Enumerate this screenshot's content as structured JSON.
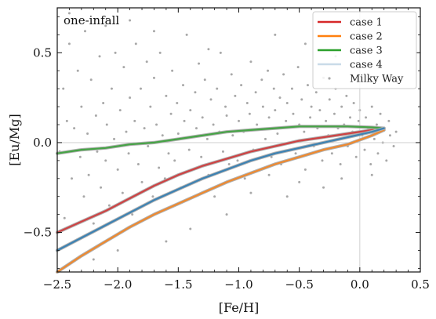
{
  "chart_data": {
    "type": "line",
    "annotation": "one-infall",
    "xlabel": "[Fe/H]",
    "ylabel": "[Eu/Mg]",
    "xlim": [
      -2.5,
      0.5
    ],
    "ylim": [
      -0.72,
      0.75
    ],
    "xticks": [
      "−2.5",
      "−2.0",
      "−1.5",
      "−1.0",
      "−0.5",
      "0.0",
      "0.5"
    ],
    "xtick_values": [
      -2.5,
      -2.0,
      -1.5,
      -1.0,
      -0.5,
      0.0,
      0.5
    ],
    "yticks": [
      "−0.5",
      "0.0",
      "0.5"
    ],
    "ytick_values": [
      -0.5,
      0.0,
      0.5
    ],
    "reference_lines": {
      "x": 0.0,
      "y": 0.0
    },
    "legend_position": "top-right",
    "series": [
      {
        "name": "case 1",
        "color": "#d62728",
        "x": [
          -2.5,
          -2.3,
          -2.1,
          -1.9,
          -1.7,
          -1.5,
          -1.3,
          -1.1,
          -0.9,
          -0.7,
          -0.5,
          -0.3,
          -0.1,
          0.1,
          0.2
        ],
        "y": [
          -0.5,
          -0.44,
          -0.38,
          -0.31,
          -0.24,
          -0.18,
          -0.13,
          -0.09,
          -0.05,
          -0.02,
          0.01,
          0.03,
          0.05,
          0.07,
          0.08
        ]
      },
      {
        "name": "case 2",
        "color": "#ff7f0e",
        "x": [
          -2.5,
          -2.3,
          -2.1,
          -1.9,
          -1.7,
          -1.5,
          -1.3,
          -1.1,
          -0.9,
          -0.7,
          -0.5,
          -0.3,
          -0.1,
          0.1,
          0.2
        ],
        "y": [
          -0.72,
          -0.63,
          -0.55,
          -0.47,
          -0.4,
          -0.34,
          -0.28,
          -0.22,
          -0.17,
          -0.12,
          -0.08,
          -0.04,
          -0.01,
          0.04,
          0.07
        ]
      },
      {
        "name": "case 3",
        "color": "#2ca02c",
        "x": [
          -2.5,
          -2.3,
          -2.1,
          -1.9,
          -1.7,
          -1.5,
          -1.3,
          -1.1,
          -0.9,
          -0.7,
          -0.5,
          -0.3,
          -0.1,
          0.1,
          0.2
        ],
        "y": [
          -0.06,
          -0.04,
          -0.03,
          -0.01,
          0.0,
          0.02,
          0.04,
          0.06,
          0.07,
          0.08,
          0.09,
          0.09,
          0.09,
          0.085,
          0.08
        ]
      },
      {
        "name": "case 4",
        "color": "#1f77b4",
        "legend_color": "#c9dbe8",
        "x": [
          -2.5,
          -2.3,
          -2.1,
          -1.9,
          -1.7,
          -1.5,
          -1.3,
          -1.1,
          -0.9,
          -0.7,
          -0.5,
          -0.3,
          -0.1,
          0.1,
          0.2
        ],
        "y": [
          -0.6,
          -0.53,
          -0.46,
          -0.39,
          -0.32,
          -0.26,
          -0.2,
          -0.15,
          -0.1,
          -0.06,
          -0.03,
          0.0,
          0.03,
          0.06,
          0.08
        ]
      }
    ],
    "scatter": {
      "name": "Milky Way",
      "color": "#a8a8a8",
      "points": [
        [
          -2.48,
          -0.05
        ],
        [
          -2.45,
          0.3
        ],
        [
          -2.44,
          -0.42
        ],
        [
          -2.42,
          0.12
        ],
        [
          -2.4,
          0.55
        ],
        [
          -2.38,
          -0.2
        ],
        [
          -2.36,
          0.08
        ],
        [
          -2.35,
          -0.55
        ],
        [
          -2.33,
          0.4
        ],
        [
          -2.31,
          -0.08
        ],
        [
          -2.3,
          0.2
        ],
        [
          -2.28,
          -0.3
        ],
        [
          -2.27,
          0.62
        ],
        [
          -2.25,
          0.05
        ],
        [
          -2.24,
          -0.18
        ],
        [
          -2.22,
          0.35
        ],
        [
          -2.2,
          -0.45
        ],
        [
          -2.18,
          0.15
        ],
        [
          -2.17,
          -0.05
        ],
        [
          -2.15,
          0.48
        ],
        [
          -2.14,
          -0.25
        ],
        [
          -2.12,
          0.22
        ],
        [
          -2.1,
          -0.1
        ],
        [
          -2.09,
          0.1
        ],
        [
          -2.07,
          -0.35
        ],
        [
          -2.05,
          0.3
        ],
        [
          -2.03,
          0.02
        ],
        [
          -2.02,
          0.5
        ],
        [
          -2.0,
          -0.15
        ],
        [
          -1.98,
          0.18
        ],
        [
          -1.96,
          -0.28
        ],
        [
          -1.95,
          0.42
        ],
        [
          -1.93,
          0.06
        ],
        [
          -1.91,
          -0.06
        ],
        [
          -1.9,
          0.25
        ],
        [
          -1.88,
          -0.4
        ],
        [
          -1.86,
          0.12
        ],
        [
          -1.85,
          0.55
        ],
        [
          -1.83,
          -0.12
        ],
        [
          -1.81,
          0.3
        ],
        [
          -1.8,
          -0.22
        ],
        [
          -1.78,
          0.08
        ],
        [
          -1.76,
          0.45
        ],
        [
          -1.75,
          -0.02
        ],
        [
          -1.73,
          0.2
        ],
        [
          -1.71,
          -0.3
        ],
        [
          -1.7,
          0.36
        ],
        [
          -1.68,
          0.1
        ],
        [
          -1.66,
          -0.14
        ],
        [
          -1.65,
          0.5
        ],
        [
          -1.63,
          0.04
        ],
        [
          -1.61,
          -0.2
        ],
        [
          -1.6,
          0.26
        ],
        [
          -1.58,
          -0.06
        ],
        [
          -1.56,
          0.16
        ],
        [
          -1.55,
          0.4
        ],
        [
          -1.53,
          -0.1
        ],
        [
          -1.51,
          0.22
        ],
        [
          -1.5,
          0.05
        ],
        [
          -1.48,
          -0.25
        ],
        [
          -1.46,
          0.32
        ],
        [
          -1.45,
          0.12
        ],
        [
          -1.43,
          0.6
        ],
        [
          -1.41,
          -0.04
        ],
        [
          -1.4,
          0.18
        ],
        [
          -1.38,
          -0.15
        ],
        [
          -1.36,
          0.28
        ],
        [
          -1.35,
          0.08
        ],
        [
          -1.33,
          0.44
        ],
        [
          -1.31,
          -0.08
        ],
        [
          -1.3,
          0.14
        ],
        [
          -1.28,
          0.35
        ],
        [
          -1.26,
          0.02
        ],
        [
          -1.25,
          -0.18
        ],
        [
          -1.23,
          0.24
        ],
        [
          -1.21,
          0.1
        ],
        [
          -1.2,
          -0.3
        ],
        [
          -1.18,
          0.3
        ],
        [
          -1.16,
          0.06
        ],
        [
          -1.15,
          0.5
        ],
        [
          -1.13,
          -0.05
        ],
        [
          -1.11,
          0.2
        ],
        [
          -1.1,
          0.15
        ],
        [
          -1.08,
          -0.12
        ],
        [
          -1.06,
          0.38
        ],
        [
          -1.05,
          0.04
        ],
        [
          -1.03,
          0.26
        ],
        [
          -1.01,
          -0.1
        ],
        [
          -1.0,
          0.12
        ],
        [
          -0.98,
          0.32
        ],
        [
          -0.96,
          0.06
        ],
        [
          -0.95,
          -0.2
        ],
        [
          -0.93,
          0.22
        ],
        [
          -0.91,
          0.16
        ],
        [
          -0.9,
          0.45
        ],
        [
          -0.88,
          -0.04
        ],
        [
          -0.86,
          0.28
        ],
        [
          -0.85,
          0.1
        ],
        [
          -0.83,
          -0.15
        ],
        [
          -0.81,
          0.35
        ],
        [
          -0.8,
          0.2
        ],
        [
          -0.78,
          0.02
        ],
        [
          -0.76,
          0.4
        ],
        [
          -0.75,
          0.14
        ],
        [
          -0.73,
          -0.08
        ],
        [
          -0.71,
          0.3
        ],
        [
          -0.7,
          0.18
        ],
        [
          -0.68,
          0.05
        ],
        [
          -0.66,
          0.25
        ],
        [
          -0.65,
          -0.12
        ],
        [
          -0.63,
          0.38
        ],
        [
          -0.61,
          0.12
        ],
        [
          -0.6,
          0.22
        ],
        [
          -0.58,
          0.0
        ],
        [
          -0.56,
          0.3
        ],
        [
          -0.55,
          0.16
        ],
        [
          -0.53,
          -0.06
        ],
        [
          -0.51,
          0.42
        ],
        [
          -0.5,
          0.1
        ],
        [
          -0.48,
          0.24
        ],
        [
          -0.46,
          0.06
        ],
        [
          -0.45,
          -0.15
        ],
        [
          -0.43,
          0.32
        ],
        [
          -0.41,
          0.14
        ],
        [
          -0.4,
          0.2
        ],
        [
          -0.38,
          -0.02
        ],
        [
          -0.36,
          0.28
        ],
        [
          -0.35,
          0.08
        ],
        [
          -0.33,
          0.18
        ],
        [
          -0.31,
          -0.1
        ],
        [
          -0.3,
          0.36
        ],
        [
          -0.28,
          0.12
        ],
        [
          -0.26,
          0.04
        ],
        [
          -0.25,
          0.24
        ],
        [
          -0.23,
          -0.06
        ],
        [
          -0.21,
          0.16
        ],
        [
          -0.2,
          0.3
        ],
        [
          -0.18,
          0.08
        ],
        [
          -0.16,
          -0.12
        ],
        [
          -0.15,
          0.2
        ],
        [
          -0.13,
          0.1
        ],
        [
          -0.11,
          0.26
        ],
        [
          -0.1,
          -0.02
        ],
        [
          -0.08,
          0.14
        ],
        [
          -0.06,
          0.06
        ],
        [
          -0.05,
          0.22
        ],
        [
          -0.03,
          -0.08
        ],
        [
          -0.01,
          0.12
        ],
        [
          0.0,
          0.18
        ],
        [
          0.02,
          0.04
        ],
        [
          0.04,
          -0.04
        ],
        [
          0.05,
          0.14
        ],
        [
          0.07,
          0.08
        ],
        [
          0.09,
          -0.12
        ],
        [
          0.1,
          0.2
        ],
        [
          0.12,
          0.02
        ],
        [
          0.14,
          0.1
        ],
        [
          0.15,
          -0.06
        ],
        [
          0.17,
          0.16
        ],
        [
          0.19,
          0.0
        ],
        [
          0.2,
          0.08
        ],
        [
          0.22,
          -0.1
        ],
        [
          0.24,
          0.12
        ],
        [
          0.25,
          0.04
        ],
        [
          0.28,
          -0.02
        ],
        [
          0.3,
          0.06
        ],
        [
          -0.45,
          0.55
        ],
        [
          -0.7,
          0.6
        ],
        [
          -1.9,
          0.68
        ],
        [
          -2.4,
          0.72
        ],
        [
          -1.25,
          0.52
        ],
        [
          -0.2,
          0.48
        ],
        [
          -2.0,
          -0.6
        ],
        [
          -1.6,
          -0.55
        ],
        [
          -0.3,
          -0.25
        ],
        [
          -0.6,
          -0.3
        ],
        [
          -0.9,
          -0.28
        ],
        [
          -1.1,
          -0.4
        ],
        [
          -0.15,
          -0.2
        ],
        [
          0.1,
          -0.18
        ],
        [
          -2.2,
          -0.65
        ],
        [
          -1.4,
          -0.48
        ],
        [
          -0.5,
          -0.22
        ],
        [
          -0.75,
          -0.18
        ],
        [
          -1.7,
          0.62
        ],
        [
          -2.1,
          0.65
        ]
      ]
    }
  }
}
